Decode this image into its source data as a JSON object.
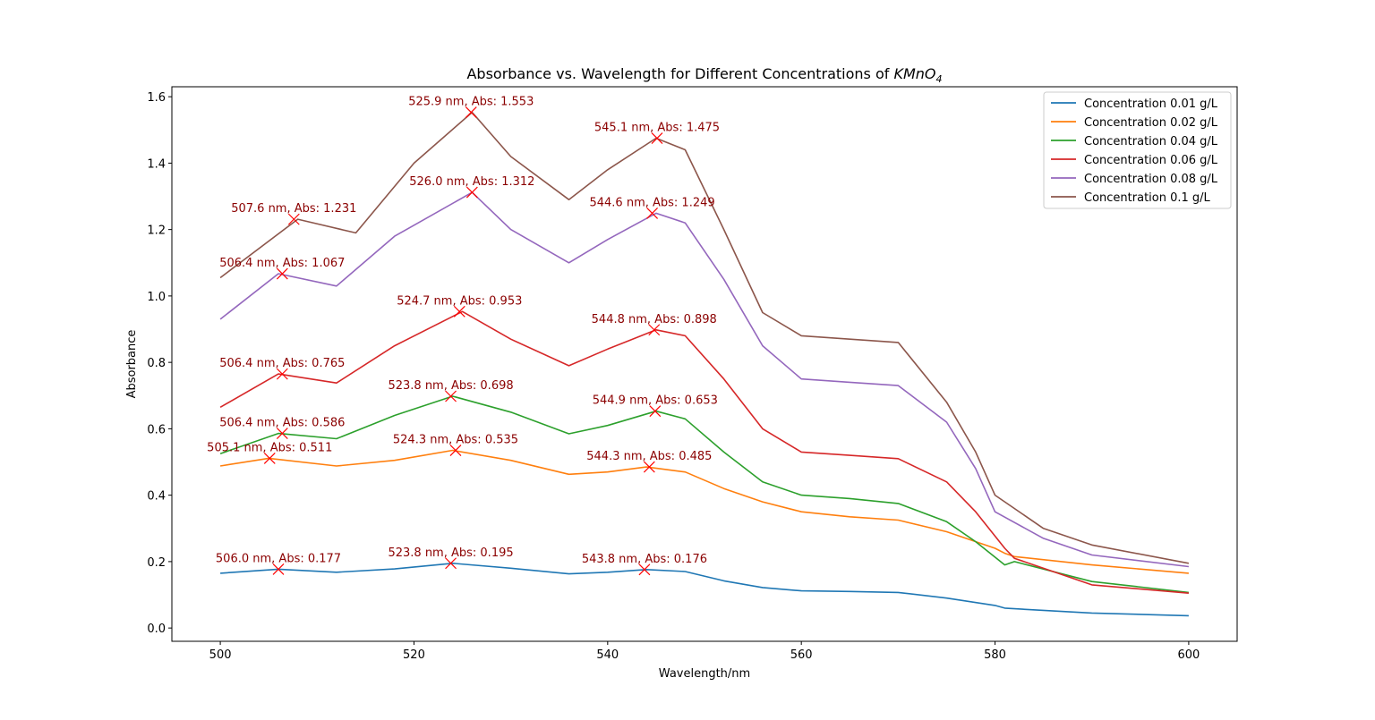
{
  "chart_data": {
    "type": "line",
    "title_main": "Absorbance vs. Wavelength for Different Concentrations of ",
    "title_formula": {
      "base": "KMnO",
      "sub": "4"
    },
    "xlabel": "Wavelength/nm",
    "ylabel": "Absorbance",
    "xlim": [
      495,
      605
    ],
    "ylim": [
      -0.04,
      1.63
    ],
    "xticks": [
      500,
      520,
      540,
      560,
      580,
      600
    ],
    "yticks": [
      0.0,
      0.2,
      0.4,
      0.6,
      0.8,
      1.0,
      1.2,
      1.4,
      1.6
    ],
    "xtick_labels": [
      "500",
      "520",
      "540",
      "560",
      "580",
      "600"
    ],
    "ytick_labels": [
      "0.0",
      "0.2",
      "0.4",
      "0.6",
      "0.8",
      "1.0",
      "1.2",
      "1.4",
      "1.6"
    ],
    "legend_position": "top-right",
    "grid": false,
    "series": [
      {
        "name": "Concentration 0.01 g/L",
        "color": "#1f77b4",
        "x": [
          500,
          506,
          512,
          518,
          524,
          530,
          536,
          540,
          544,
          548,
          552,
          556,
          560,
          565,
          570,
          575,
          580,
          581,
          582,
          590,
          600
        ],
        "y": [
          0.165,
          0.177,
          0.168,
          0.178,
          0.195,
          0.18,
          0.163,
          0.168,
          0.176,
          0.17,
          0.142,
          0.122,
          0.112,
          0.11,
          0.107,
          0.09,
          0.068,
          0.06,
          0.058,
          0.045,
          0.037
        ]
      },
      {
        "name": "Concentration 0.02 g/L",
        "color": "#ff7f0e",
        "x": [
          500,
          505,
          512,
          518,
          524,
          530,
          536,
          540,
          544,
          548,
          552,
          556,
          560,
          565,
          570,
          575,
          580,
          581,
          582,
          590,
          600
        ],
        "y": [
          0.488,
          0.511,
          0.488,
          0.505,
          0.535,
          0.505,
          0.463,
          0.47,
          0.485,
          0.47,
          0.42,
          0.38,
          0.35,
          0.335,
          0.325,
          0.29,
          0.24,
          0.225,
          0.215,
          0.19,
          0.165
        ]
      },
      {
        "name": "Concentration 0.04 g/L",
        "color": "#2ca02c",
        "x": [
          500,
          506,
          512,
          518,
          524,
          530,
          536,
          540,
          545,
          548,
          552,
          556,
          560,
          565,
          570,
          575,
          578,
          581,
          582,
          590,
          600
        ],
        "y": [
          0.525,
          0.586,
          0.57,
          0.64,
          0.698,
          0.65,
          0.585,
          0.61,
          0.653,
          0.63,
          0.53,
          0.44,
          0.4,
          0.39,
          0.375,
          0.32,
          0.26,
          0.19,
          0.2,
          0.14,
          0.107
        ]
      },
      {
        "name": "Concentration 0.06 g/L",
        "color": "#d62728",
        "x": [
          500,
          506,
          512,
          518,
          525,
          530,
          536,
          540,
          545,
          548,
          552,
          556,
          560,
          565,
          570,
          575,
          578,
          581,
          582,
          590,
          600
        ],
        "y": [
          0.665,
          0.765,
          0.738,
          0.85,
          0.953,
          0.87,
          0.79,
          0.84,
          0.898,
          0.88,
          0.75,
          0.6,
          0.53,
          0.52,
          0.51,
          0.44,
          0.35,
          0.24,
          0.21,
          0.13,
          0.105
        ]
      },
      {
        "name": "Concentration 0.08 g/L",
        "color": "#9467bd",
        "x": [
          500,
          506,
          512,
          518,
          526,
          530,
          536,
          540,
          545,
          548,
          552,
          556,
          560,
          565,
          570,
          575,
          578,
          580,
          585,
          590,
          600
        ],
        "y": [
          0.93,
          1.067,
          1.03,
          1.18,
          1.312,
          1.2,
          1.1,
          1.17,
          1.249,
          1.22,
          1.05,
          0.85,
          0.75,
          0.74,
          0.73,
          0.62,
          0.48,
          0.35,
          0.27,
          0.22,
          0.185
        ]
      },
      {
        "name": "Concentration 0.1 g/L",
        "color": "#8c564b",
        "x": [
          500,
          508,
          514,
          520,
          526,
          530,
          536,
          540,
          545,
          548,
          552,
          556,
          560,
          565,
          570,
          575,
          578,
          580,
          585,
          590,
          600
        ],
        "y": [
          1.055,
          1.231,
          1.19,
          1.4,
          1.553,
          1.42,
          1.29,
          1.38,
          1.475,
          1.44,
          1.2,
          0.95,
          0.88,
          0.87,
          0.86,
          0.68,
          0.53,
          0.4,
          0.3,
          0.25,
          0.195
        ]
      }
    ],
    "peaks": [
      {
        "x": 506.0,
        "y": 0.177,
        "label": "506.0 nm, Abs: 0.177"
      },
      {
        "x": 523.8,
        "y": 0.195,
        "label": "523.8 nm, Abs: 0.195"
      },
      {
        "x": 543.8,
        "y": 0.176,
        "label": "543.8 nm, Abs: 0.176"
      },
      {
        "x": 505.1,
        "y": 0.511,
        "label": "505.1 nm, Abs: 0.511"
      },
      {
        "x": 524.3,
        "y": 0.535,
        "label": "524.3 nm, Abs: 0.535"
      },
      {
        "x": 544.3,
        "y": 0.485,
        "label": "544.3 nm, Abs: 0.485"
      },
      {
        "x": 506.4,
        "y": 0.586,
        "label": "506.4 nm, Abs: 0.586"
      },
      {
        "x": 523.8,
        "y": 0.698,
        "label": "523.8 nm, Abs: 0.698"
      },
      {
        "x": 544.9,
        "y": 0.653,
        "label": "544.9 nm, Abs: 0.653"
      },
      {
        "x": 506.4,
        "y": 0.765,
        "label": "506.4 nm, Abs: 0.765"
      },
      {
        "x": 524.7,
        "y": 0.953,
        "label": "524.7 nm, Abs: 0.953"
      },
      {
        "x": 544.8,
        "y": 0.898,
        "label": "544.8 nm, Abs: 0.898"
      },
      {
        "x": 506.4,
        "y": 1.067,
        "label": "506.4 nm, Abs: 1.067"
      },
      {
        "x": 526.0,
        "y": 1.312,
        "label": "526.0 nm, Abs: 1.312"
      },
      {
        "x": 544.6,
        "y": 1.249,
        "label": "544.6 nm, Abs: 1.249"
      },
      {
        "x": 507.6,
        "y": 1.231,
        "label": "507.6 nm, Abs: 1.231"
      },
      {
        "x": 525.9,
        "y": 1.553,
        "label": "525.9 nm, Abs: 1.553"
      },
      {
        "x": 545.1,
        "y": 1.475,
        "label": "545.1 nm, Abs: 1.475"
      }
    ],
    "peak_marker_color": "#ff0000",
    "annotation_color": "#8b0000"
  }
}
